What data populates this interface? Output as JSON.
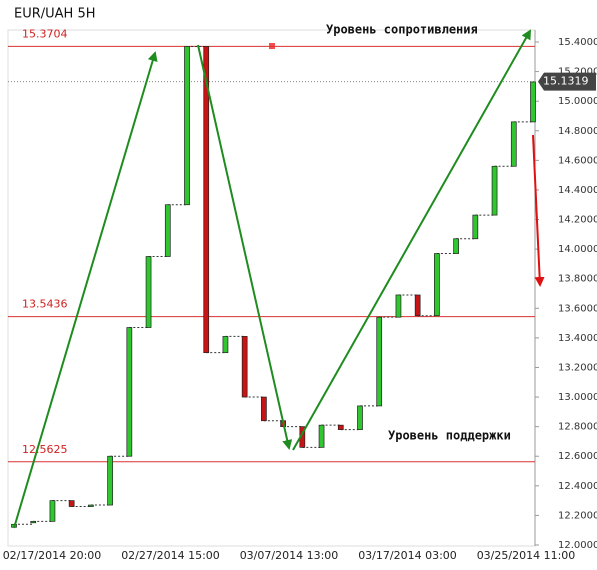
{
  "chart_data": {
    "type": "candlestick",
    "title": "EUR/UAH 5H",
    "open": [
      12.12,
      12.15,
      12.16,
      12.3,
      12.26,
      12.27,
      12.6,
      13.47,
      13.95,
      14.3,
      15.37,
      13.3,
      13.41,
      13.0,
      12.84,
      12.8,
      12.66,
      12.81,
      12.78,
      12.94,
      13.54,
      13.69,
      13.55,
      13.97,
      14.07,
      14.23,
      14.56,
      14.86
    ],
    "close": [
      12.14,
      12.16,
      12.3,
      12.26,
      12.27,
      12.6,
      13.47,
      13.95,
      14.3,
      15.37,
      13.3,
      13.41,
      13.0,
      12.84,
      12.8,
      12.66,
      12.81,
      12.78,
      12.94,
      13.54,
      13.69,
      13.55,
      13.97,
      14.07,
      14.23,
      14.56,
      14.86,
      15.13
    ],
    "up_color": "#2fc62f",
    "down_color": "#c81414",
    "x_labels": [
      "02/17/2014 20:00",
      "02/27/2014 15:00",
      "03/07/2014 13:00",
      "03/17/2014 03:00",
      "03/25/2014 11:00"
    ],
    "ylim": [
      12.0,
      15.4
    ],
    "yticks": [
      {
        "value": 12.0,
        "label": "12.0000"
      },
      {
        "value": 12.2,
        "label": "12.2000"
      },
      {
        "value": 12.4,
        "label": "12.4000"
      },
      {
        "value": 12.6,
        "label": "12.6000"
      },
      {
        "value": 12.8,
        "label": "12.8000"
      },
      {
        "value": 13.0,
        "label": "13.0000"
      },
      {
        "value": 13.2,
        "label": "13.2000"
      },
      {
        "value": 13.4,
        "label": "13.4000"
      },
      {
        "value": 13.6,
        "label": "13.6000"
      },
      {
        "value": 13.8,
        "label": "13.8000"
      },
      {
        "value": 14.0,
        "label": "14.0000"
      },
      {
        "value": 14.2,
        "label": "14.2000"
      },
      {
        "value": 14.4,
        "label": "14.4000"
      },
      {
        "value": 14.6,
        "label": "14.6000"
      },
      {
        "value": 14.8,
        "label": "14.8000"
      },
      {
        "value": 15.0,
        "label": "15.0000"
      },
      {
        "value": 15.2,
        "label": "15.2000"
      },
      {
        "value": 15.4,
        "label": "15.4000"
      }
    ],
    "levels": [
      15.3704,
      13.5436,
      12.5625
    ],
    "level_color": "#d83030",
    "last_price": 15.1319,
    "annotations": [
      "Уровень сопротивления",
      "Уровень поддержки"
    ]
  }
}
